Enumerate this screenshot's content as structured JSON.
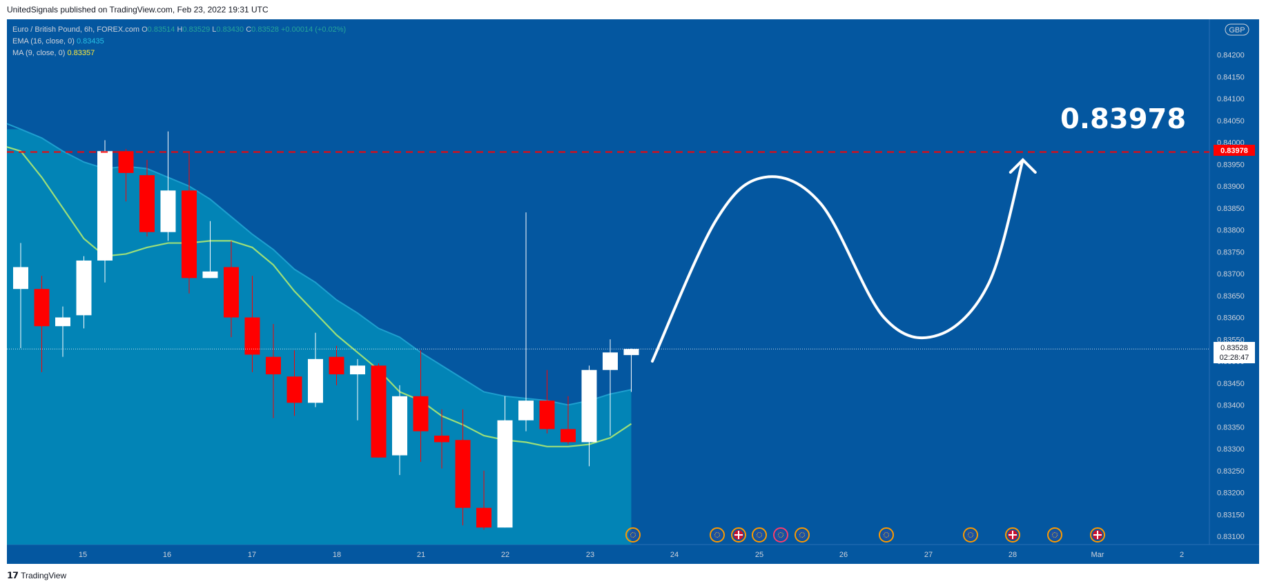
{
  "caption": "UnitedSignals published on TradingView.com, Feb 23, 2022 19:31 UTC",
  "brand": "TradingView",
  "legend": {
    "symbol": "Euro / British Pound, 6h, FOREX.com",
    "o_label": "O",
    "o_value": "0.83514",
    "h_label": "H",
    "h_value": "0.83529",
    "l_label": "L",
    "l_value": "0.83430",
    "c_label": "C",
    "c_value": "0.83528",
    "change": "+0.00014 (+0.02%)",
    "ema_label": "EMA (16, close, 0)",
    "ema_value": "0.83435",
    "ma_label": "MA (9, close, 0)",
    "ma_value": "0.83357"
  },
  "currency_badge": "GBP",
  "target_text": "0.83978",
  "price_tag": "0.83978",
  "last_price": "0.83528",
  "countdown": "02:28:47",
  "colors": {
    "background": "#0457a0",
    "cloud": "#0284b6",
    "cloud_line": "#1e9fcf",
    "ma_line": "#9ddf79",
    "up_candle": "#ffffff",
    "down_candle": "#ff0000",
    "target_line": "#ff0000"
  },
  "chart_data": {
    "type": "candlestick",
    "timeframe": "6h",
    "ylim": [
      0.83075,
      0.8425
    ],
    "y_ticks": [
      "0.84200",
      "0.84150",
      "0.84100",
      "0.84050",
      "0.84000",
      "0.83950",
      "0.83900",
      "0.83850",
      "0.83800",
      "0.83750",
      "0.83700",
      "0.83650",
      "0.83600",
      "0.83550",
      "0.83500",
      "0.83450",
      "0.83400",
      "0.83350",
      "0.83300",
      "0.83250",
      "0.83200",
      "0.83150",
      "0.83100"
    ],
    "x_ticks": [
      "15",
      "16",
      "17",
      "18",
      "21",
      "22",
      "23",
      "24",
      "25",
      "26",
      "27",
      "28",
      "Mar",
      "2"
    ],
    "candles": [
      {
        "o": 0.83665,
        "h": 0.8377,
        "l": 0.8353,
        "c": 0.83715
      },
      {
        "o": 0.83665,
        "h": 0.83695,
        "l": 0.83475,
        "c": 0.8358
      },
      {
        "o": 0.8358,
        "h": 0.83625,
        "l": 0.8351,
        "c": 0.836
      },
      {
        "o": 0.83605,
        "h": 0.8374,
        "l": 0.83575,
        "c": 0.8373
      },
      {
        "o": 0.8373,
        "h": 0.84005,
        "l": 0.8368,
        "c": 0.8398
      },
      {
        "o": 0.8398,
        "h": 0.83985,
        "l": 0.83865,
        "c": 0.8393
      },
      {
        "o": 0.83925,
        "h": 0.8396,
        "l": 0.83785,
        "c": 0.83795
      },
      {
        "o": 0.83795,
        "h": 0.84025,
        "l": 0.83775,
        "c": 0.8389
      },
      {
        "o": 0.8389,
        "h": 0.8398,
        "l": 0.83655,
        "c": 0.8369
      },
      {
        "o": 0.8369,
        "h": 0.8382,
        "l": 0.8369,
        "c": 0.83705
      },
      {
        "o": 0.83715,
        "h": 0.83775,
        "l": 0.83555,
        "c": 0.836
      },
      {
        "o": 0.836,
        "h": 0.83695,
        "l": 0.83475,
        "c": 0.83515
      },
      {
        "o": 0.8351,
        "h": 0.83585,
        "l": 0.8337,
        "c": 0.8347
      },
      {
        "o": 0.83465,
        "h": 0.83525,
        "l": 0.83375,
        "c": 0.83405
      },
      {
        "o": 0.83405,
        "h": 0.83565,
        "l": 0.83395,
        "c": 0.83505
      },
      {
        "o": 0.8351,
        "h": 0.83535,
        "l": 0.83445,
        "c": 0.8347
      },
      {
        "o": 0.8347,
        "h": 0.83505,
        "l": 0.83365,
        "c": 0.8349
      },
      {
        "o": 0.8349,
        "h": 0.83495,
        "l": 0.8328,
        "c": 0.8328
      },
      {
        "o": 0.83285,
        "h": 0.83445,
        "l": 0.8324,
        "c": 0.8342
      },
      {
        "o": 0.8342,
        "h": 0.83525,
        "l": 0.8327,
        "c": 0.8334
      },
      {
        "o": 0.8333,
        "h": 0.8339,
        "l": 0.83255,
        "c": 0.83315
      },
      {
        "o": 0.8332,
        "h": 0.8339,
        "l": 0.83125,
        "c": 0.83165
      },
      {
        "o": 0.83165,
        "h": 0.8325,
        "l": 0.83115,
        "c": 0.8312
      },
      {
        "o": 0.8312,
        "h": 0.8342,
        "l": 0.8312,
        "c": 0.83365
      },
      {
        "o": 0.83365,
        "h": 0.8384,
        "l": 0.8334,
        "c": 0.8341
      },
      {
        "o": 0.8341,
        "h": 0.8348,
        "l": 0.83335,
        "c": 0.83345
      },
      {
        "o": 0.83345,
        "h": 0.8342,
        "l": 0.8331,
        "c": 0.83315
      },
      {
        "o": 0.83315,
        "h": 0.8349,
        "l": 0.8326,
        "c": 0.8348
      },
      {
        "o": 0.8348,
        "h": 0.8355,
        "l": 0.8333,
        "c": 0.8352
      },
      {
        "o": 0.83514,
        "h": 0.83529,
        "l": 0.8343,
        "c": 0.83528
      }
    ],
    "ema_16": [
      0.8403,
      0.8401,
      0.8398,
      0.83955,
      0.8394,
      0.83945,
      0.8394,
      0.8392,
      0.839,
      0.8387,
      0.8383,
      0.8379,
      0.83755,
      0.8371,
      0.8368,
      0.8364,
      0.8361,
      0.83575,
      0.83555,
      0.8352,
      0.8349,
      0.8346,
      0.8343,
      0.8342,
      0.83415,
      0.8341,
      0.834,
      0.8341,
      0.83425,
      0.83435
    ],
    "ma_9": [
      0.8398,
      0.8392,
      0.8385,
      0.8378,
      0.8374,
      0.83745,
      0.8376,
      0.8377,
      0.8377,
      0.83775,
      0.83775,
      0.8376,
      0.8372,
      0.8366,
      0.8361,
      0.8356,
      0.8352,
      0.8348,
      0.8343,
      0.8341,
      0.83375,
      0.83355,
      0.8333,
      0.8332,
      0.83315,
      0.83305,
      0.83305,
      0.8331,
      0.83325,
      0.83357
    ],
    "target_level": 0.83978,
    "current_price": 0.83528,
    "projection": [
      {
        "t": 30.0,
        "p": 0.835
      },
      {
        "t": 33.0,
        "p": 0.8382
      },
      {
        "t": 35.3,
        "p": 0.8392
      },
      {
        "t": 38.0,
        "p": 0.8386
      },
      {
        "t": 41.0,
        "p": 0.836
      },
      {
        "t": 43.6,
        "p": 0.8356
      },
      {
        "t": 46.0,
        "p": 0.8368
      },
      {
        "t": 47.6,
        "p": 0.8396
      }
    ]
  }
}
